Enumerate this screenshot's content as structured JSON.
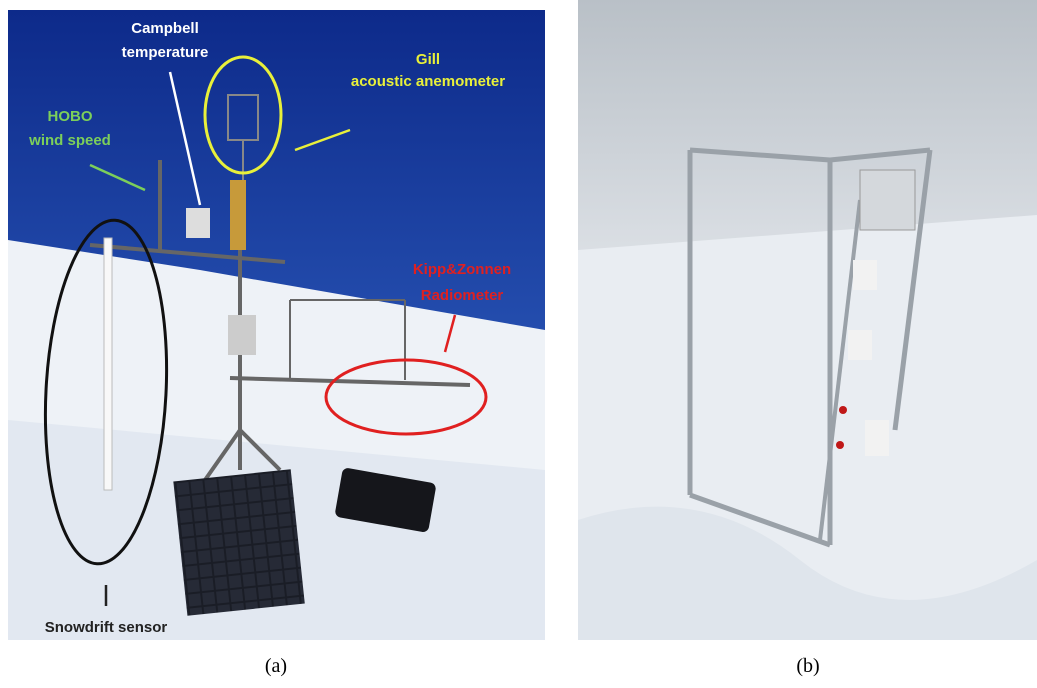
{
  "panels": [
    {
      "caption": "(a)",
      "annotations": [
        {
          "lines": [
            "Campbell",
            "temperature"
          ]
        },
        {
          "lines": [
            "Gill",
            "acoustic anemometer"
          ]
        },
        {
          "lines": [
            "HOBO",
            "wind speed"
          ]
        },
        {
          "lines": [
            "Kipp&Zonnen",
            "Radiometer"
          ]
        },
        {
          "lines": [
            "Snowdrift sensor"
          ]
        }
      ]
    },
    {
      "caption": "(b)"
    }
  ]
}
